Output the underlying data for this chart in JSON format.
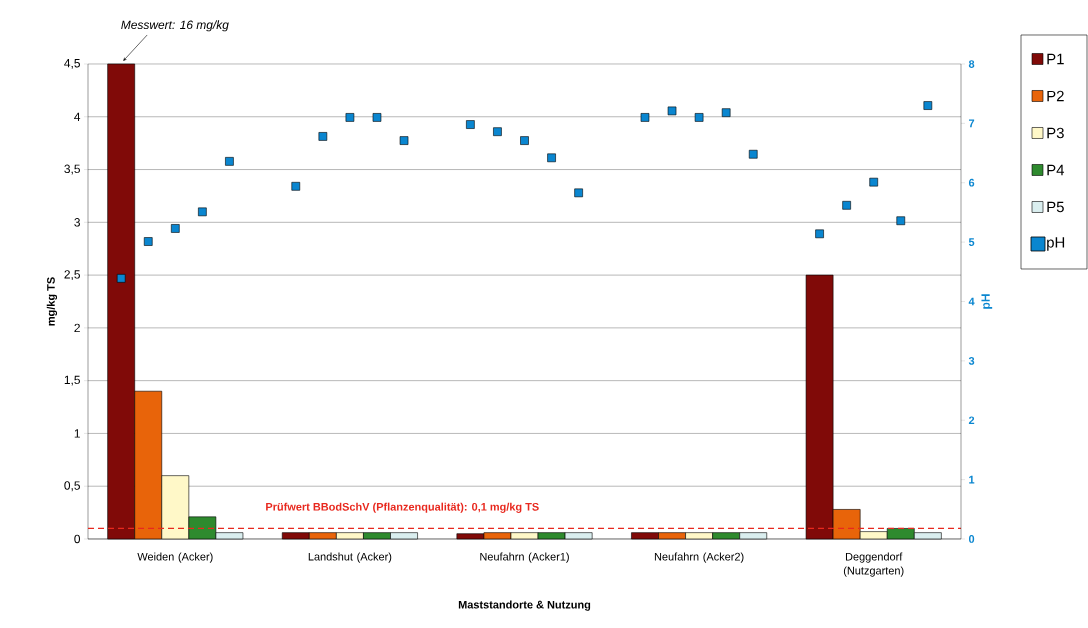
{
  "chart_data": {
    "type": "bar",
    "categories": [
      "Weiden (Acker)",
      "Landshut (Acker)",
      "Neufahrn (Acker1)",
      "Neufahrn (Acker2)",
      "Deggendorf (Nutzgarten)"
    ],
    "series": [
      {
        "name": "P1",
        "color": "#800a08",
        "values": [
          4.5,
          0.06,
          0.05,
          0.06,
          2.5
        ]
      },
      {
        "name": "P2",
        "color": "#e8640a",
        "values": [
          1.4,
          0.06,
          0.06,
          0.06,
          0.28
        ]
      },
      {
        "name": "P3",
        "color": "#fff8c8",
        "values": [
          0.6,
          0.06,
          0.06,
          0.06,
          0.07
        ]
      },
      {
        "name": "P4",
        "color": "#2e8a2e",
        "values": [
          0.21,
          0.06,
          0.06,
          0.06,
          0.1
        ]
      },
      {
        "name": "P5",
        "color": "#daeeef",
        "values": [
          0.06,
          0.06,
          0.06,
          0.06,
          0.06
        ]
      },
      {
        "name": "pH",
        "type": "scatter",
        "axis": "y2",
        "marker": "square",
        "color": "#0a86d0",
        "x": [
          "Weiden (Acker)",
          "Weiden (Acker)",
          "Weiden (Acker)",
          "Weiden (Acker)",
          "Weiden (Acker)",
          "Landshut (Acker)",
          "Landshut (Acker)",
          "Landshut (Acker)",
          "Landshut (Acker)",
          "Landshut (Acker)",
          "Neufahrn (Acker1)",
          "Neufahrn (Acker1)",
          "Neufahrn (Acker1)",
          "Neufahrn (Acker1)",
          "Neufahrn (Acker1)",
          "Neufahrn (Acker2)",
          "Neufahrn (Acker2)",
          "Neufahrn (Acker2)",
          "Neufahrn (Acker2)",
          "Neufahrn (Acker2)",
          "Deggendorf (Nutzgarten)",
          "Deggendorf (Nutzgarten)",
          "Deggendorf (Nutzgarten)",
          "Deggendorf (Nutzgarten)",
          "Deggendorf (Nutzgarten)"
        ],
        "values": [
          4.39,
          5.01,
          5.23,
          5.51,
          6.36,
          5.94,
          6.78,
          7.1,
          7.1,
          6.71,
          6.98,
          6.86,
          6.71,
          6.42,
          5.83,
          7.1,
          7.21,
          7.1,
          7.18,
          6.48,
          5.14,
          5.62,
          6.01,
          5.36,
          7.3
        ]
      }
    ],
    "xlabel": "Maststandorte & Nutzung",
    "ylabel": "mg/kg TS",
    "y2label": "pH",
    "ylim": [
      0,
      4.5
    ],
    "yticks": [
      0,
      {
        "value": 0.5,
        "label": "0,5"
      },
      1,
      {
        "value": 1.5,
        "label": "1,5"
      },
      2,
      {
        "value": 2.5,
        "label": "2,5"
      },
      3,
      {
        "value": 3.5,
        "label": "3,5"
      },
      4,
      {
        "value": 4.5,
        "label": "4,5"
      }
    ],
    "y2lim": [
      0,
      8
    ],
    "y2ticks": [
      0,
      1,
      2,
      3,
      4,
      5,
      6,
      7,
      8
    ],
    "ref_lines": [
      {
        "axis": "y",
        "value": 0.1,
        "label": "Prüfwert BBodSchV (Pflanzenqualität): 0,1 mg/kg TS",
        "color": "#e8281e",
        "line_style": "dashed"
      }
    ],
    "annotations": [
      "Messwert: 16 mg/kg"
    ],
    "grid": "y",
    "legend": "top right"
  }
}
